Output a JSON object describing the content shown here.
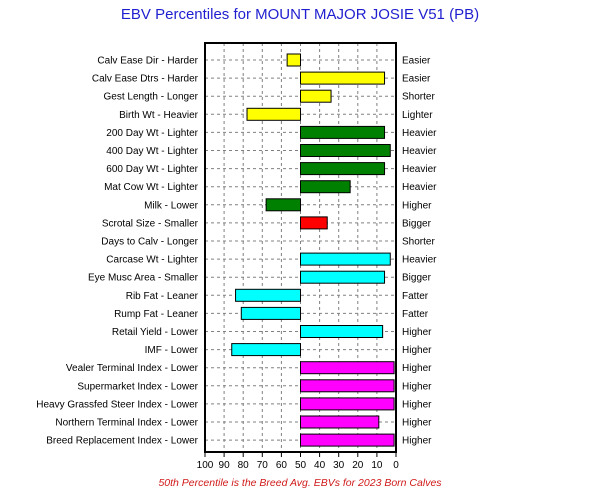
{
  "chart_data": {
    "type": "bar",
    "title": "EBV Percentiles for MOUNT MAJOR JOSIE V51 (PB)",
    "footnote": "50th Percentile is the Breed Avg. EBVs for 2023 Born Calves",
    "x_axis": {
      "ticks": [
        100,
        90,
        80,
        70,
        60,
        50,
        40,
        30,
        20,
        10,
        0
      ],
      "range": [
        100,
        0
      ],
      "reversed": true
    },
    "grid": true,
    "baseline": 50,
    "colors": {
      "yellow": "#ffff00",
      "green": "#008000",
      "red": "#ff0000",
      "cyan": "#00ffff",
      "magenta": "#ff00ff"
    },
    "traits": [
      {
        "left": "Calv Ease Dir - Harder",
        "right": "Easier",
        "value": 57,
        "color": "yellow"
      },
      {
        "left": "Calv Ease Dtrs - Harder",
        "right": "Easier",
        "value": 6,
        "color": "yellow"
      },
      {
        "left": "Gest Length - Longer",
        "right": "Shorter",
        "value": 34,
        "color": "yellow"
      },
      {
        "left": "Birth Wt - Heavier",
        "right": "Lighter",
        "value": 78,
        "color": "yellow"
      },
      {
        "left": "200 Day Wt - Lighter",
        "right": "Heavier",
        "value": 6,
        "color": "green"
      },
      {
        "left": "400 Day Wt - Lighter",
        "right": "Heavier",
        "value": 3,
        "color": "green"
      },
      {
        "left": "600 Day Wt - Lighter",
        "right": "Heavier",
        "value": 6,
        "color": "green"
      },
      {
        "left": "Mat Cow Wt - Lighter",
        "right": "Heavier",
        "value": 24,
        "color": "green"
      },
      {
        "left": "Milk - Lower",
        "right": "Higher",
        "value": 68,
        "color": "green"
      },
      {
        "left": "Scrotal Size - Smaller",
        "right": "Bigger",
        "value": 36,
        "color": "red"
      },
      {
        "left": "Days to Calv - Longer",
        "right": "Shorter",
        "value": null,
        "color": "red"
      },
      {
        "left": "Carcase Wt - Lighter",
        "right": "Heavier",
        "value": 3,
        "color": "cyan"
      },
      {
        "left": "Eye Musc Area - Smaller",
        "right": "Bigger",
        "value": 6,
        "color": "cyan"
      },
      {
        "left": "Rib Fat - Leaner",
        "right": "Fatter",
        "value": 84,
        "color": "cyan"
      },
      {
        "left": "Rump Fat - Leaner",
        "right": "Fatter",
        "value": 81,
        "color": "cyan"
      },
      {
        "left": "Retail Yield - Lower",
        "right": "Higher",
        "value": 7,
        "color": "cyan"
      },
      {
        "left": "IMF - Lower",
        "right": "Higher",
        "value": 86,
        "color": "cyan"
      },
      {
        "left": "Vealer Terminal Index - Lower",
        "right": "Higher",
        "value": 1,
        "color": "magenta"
      },
      {
        "left": "Supermarket Index - Lower",
        "right": "Higher",
        "value": 1,
        "color": "magenta"
      },
      {
        "left": "Heavy Grassfed Steer Index - Lower",
        "right": "Higher",
        "value": 1,
        "color": "magenta"
      },
      {
        "left": "Northern Terminal Index - Lower",
        "right": "Higher",
        "value": 9,
        "color": "magenta"
      },
      {
        "left": "Breed Replacement Index - Lower",
        "right": "Higher",
        "value": 1,
        "color": "magenta"
      }
    ]
  }
}
